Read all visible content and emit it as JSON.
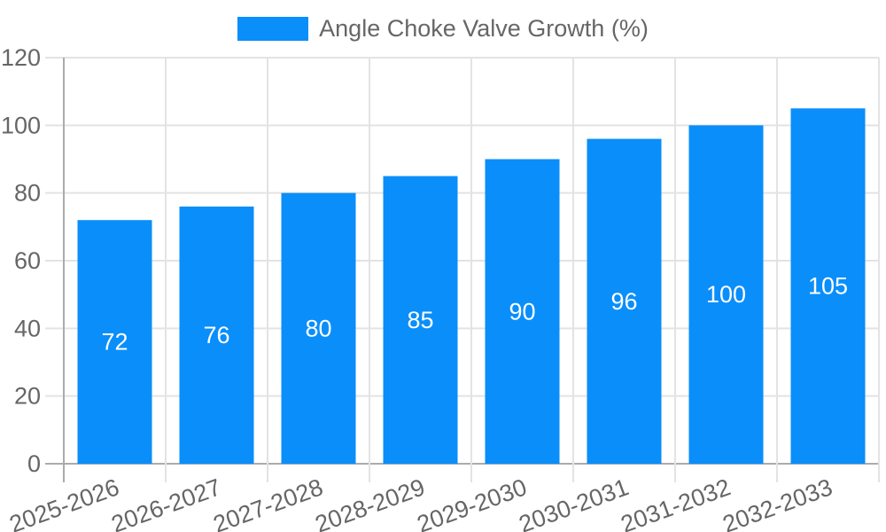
{
  "legend": {
    "label": "Angle Choke Valve Growth (%)"
  },
  "chart_data": {
    "type": "bar",
    "title": "",
    "categories": [
      "2025-2026",
      "2026-2027",
      "2027-2028",
      "2028-2029",
      "2029-2030",
      "2030-2031",
      "2031-2032",
      "2032-2033"
    ],
    "series": [
      {
        "name": "Angle Choke Valve Growth (%)",
        "values": [
          72,
          76,
          80,
          85,
          90,
          96,
          100,
          105
        ]
      }
    ],
    "xlabel": "",
    "ylabel": "",
    "ylim": [
      0,
      120
    ],
    "yticks": [
      0,
      20,
      40,
      60,
      80,
      100,
      120
    ],
    "grid": true,
    "legend_position": "top-center",
    "x_tick_rotation_deg": -20,
    "value_label_position": "inside-center"
  },
  "colors": {
    "bar": "#0a8efa",
    "grid": "#e3e3e3",
    "zero_line": "#ababab",
    "tick_text": "#666666",
    "value_label": "#ffffff",
    "background": "#ffffff"
  }
}
